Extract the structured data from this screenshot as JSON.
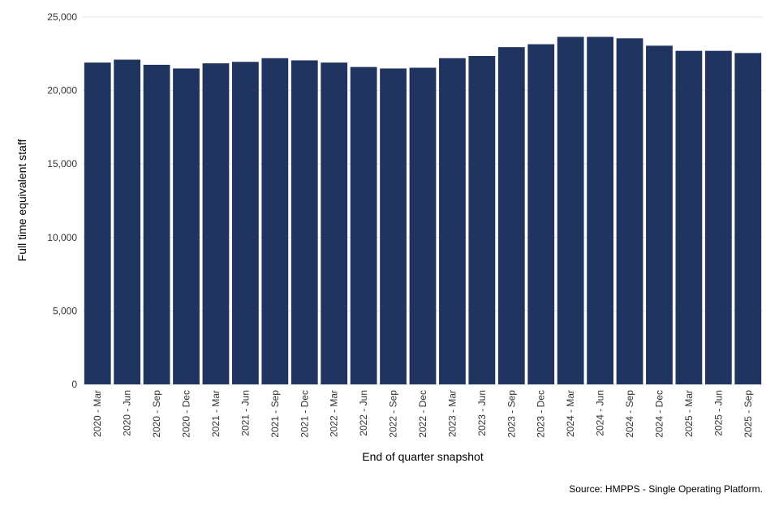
{
  "chart_data": {
    "type": "bar",
    "title": "",
    "xlabel": "End of quarter snapshot",
    "ylabel": "Full time equivalent staff",
    "source": "Source: HMPPS - Single Operating Platform.",
    "ylim": [
      0,
      25000
    ],
    "yticks": [
      0,
      5000,
      10000,
      15000,
      20000,
      25000
    ],
    "ytick_labels": [
      "0",
      "5,000",
      "10,000",
      "15,000",
      "20,000",
      "25,000"
    ],
    "grid": true,
    "bar_color": "#1f3560",
    "categories": [
      "2020 - Mar",
      "2020 - Jun",
      "2020 - Sep",
      "2020 - Dec",
      "2021 - Mar",
      "2021 - Jun",
      "2021 - Sep",
      "2021 - Dec",
      "2022 - Mar",
      "2022 - Jun",
      "2022 - Sep",
      "2022 - Dec",
      "2023 - Mar",
      "2023 - Jun",
      "2023 - Sep",
      "2023 - Dec",
      "2024 - Mar",
      "2024 - Jun",
      "2024 - Sep",
      "2024 - Dec",
      "2025 - Mar",
      "2025 - Jun",
      "2025 - Sep"
    ],
    "values": [
      21900,
      22100,
      21750,
      21500,
      21850,
      21950,
      22200,
      22050,
      21900,
      21600,
      21500,
      21550,
      22200,
      22350,
      22950,
      23150,
      23650,
      23650,
      23550,
      23050,
      22700,
      22700,
      22550
    ]
  }
}
